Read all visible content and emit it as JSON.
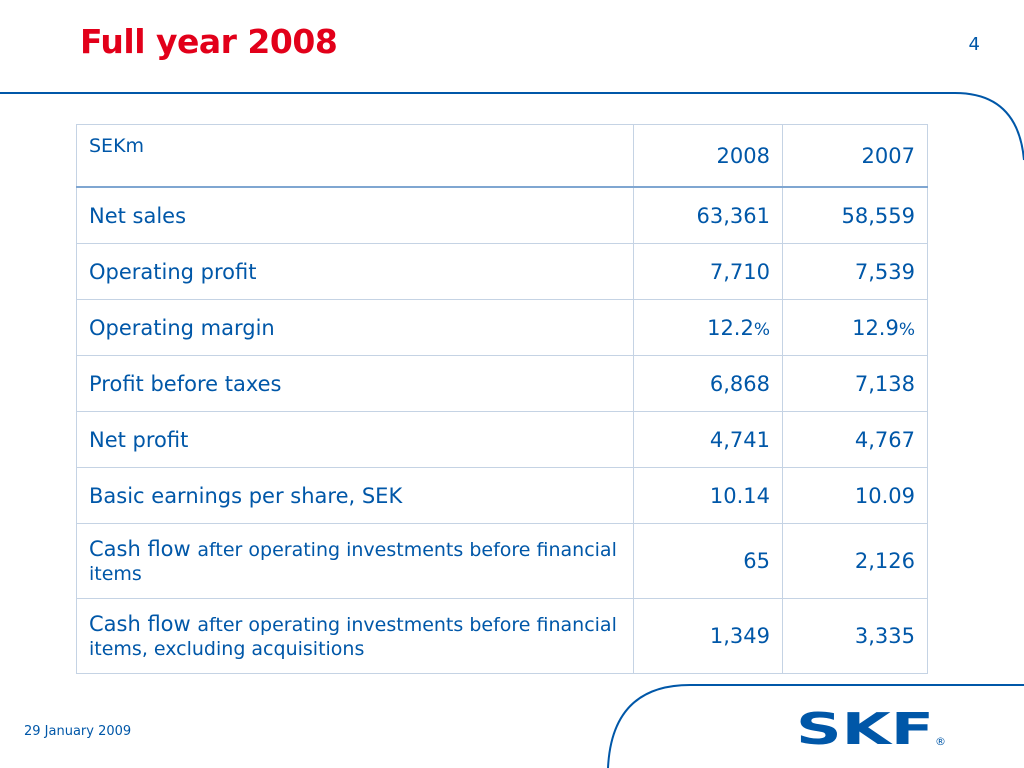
{
  "slide": {
    "title": "Full year 2008",
    "page_number": "4",
    "date": "29 January 2009"
  },
  "logo": {
    "text": "SKF",
    "registered": "®",
    "color": "#0057a8"
  },
  "colors": {
    "title": "#e2001a",
    "text": "#0057a8",
    "border": "#c5d3e4"
  },
  "table": {
    "header": {
      "label": "SEKm",
      "col1": "2008",
      "col2": "2007"
    },
    "rows": [
      {
        "label": "Net sales",
        "v2008": "63,361",
        "v2007": "58,559"
      },
      {
        "label": "Operating profit",
        "v2008": "7,710",
        "v2007": "7,539"
      },
      {
        "label": "Operating margin",
        "v2008_num": "12.2",
        "v2007_num": "12.9",
        "pct": "%"
      },
      {
        "label": "Profit before taxes",
        "v2008": "6,868",
        "v2007": "7,138"
      },
      {
        "label": "Net profit",
        "v2008": "4,741",
        "v2007": "4,767"
      },
      {
        "label": "Basic earnings per share, SEK",
        "v2008": "10.14",
        "v2007": "10.09"
      },
      {
        "label_main": "Cash flow",
        "label_detail": "after operating investments before financial items",
        "v2008": "65",
        "v2007": "2,126"
      },
      {
        "label_main": "Cash flow",
        "label_detail": "after operating investments before financial items, excluding acquisitions",
        "v2008": "1,349",
        "v2007": "3,335"
      }
    ]
  }
}
